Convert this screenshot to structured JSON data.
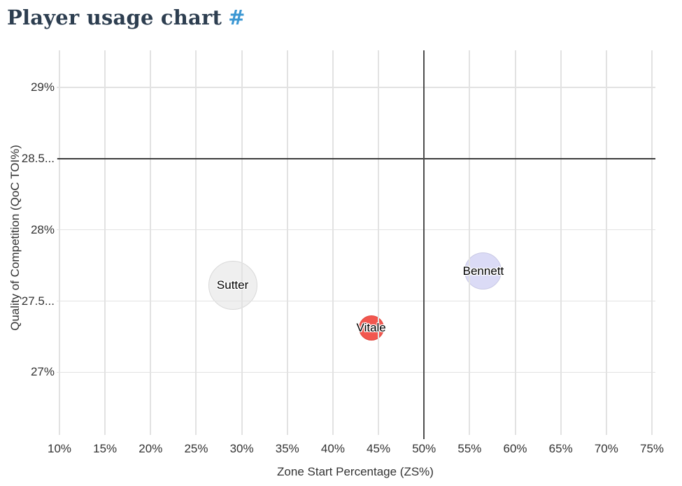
{
  "header": {
    "title": "Player usage chart",
    "anchor": "#",
    "title_color": "#2d3e50",
    "anchor_color": "#3b97d3"
  },
  "chart_data": {
    "type": "scatter",
    "subtype": "bubble",
    "title": "Player usage chart",
    "xlabel": "Zone Start Percentage (ZS%)",
    "ylabel": "Quality of Competition (QoC TOI%)",
    "xlim": [
      10,
      75
    ],
    "ylim": [
      26.56,
      29.26
    ],
    "grid": true,
    "legend": "none",
    "x_ticks": [
      {
        "value": 10,
        "label": "10%"
      },
      {
        "value": 15,
        "label": "15%"
      },
      {
        "value": 20,
        "label": "20%"
      },
      {
        "value": 25,
        "label": "25%"
      },
      {
        "value": 30,
        "label": "30%"
      },
      {
        "value": 35,
        "label": "35%"
      },
      {
        "value": 40,
        "label": "40%"
      },
      {
        "value": 45,
        "label": "45%"
      },
      {
        "value": 50,
        "label": "50%"
      },
      {
        "value": 55,
        "label": "55%"
      },
      {
        "value": 60,
        "label": "60%"
      },
      {
        "value": 65,
        "label": "65%"
      },
      {
        "value": 70,
        "label": "70%"
      },
      {
        "value": 75,
        "label": "75%"
      }
    ],
    "y_ticks": [
      {
        "value": 27,
        "label": "27%"
      },
      {
        "value": 27.5,
        "label": "27.5..."
      },
      {
        "value": 28,
        "label": "28%"
      },
      {
        "value": 28.5,
        "label": "28.5..."
      },
      {
        "value": 29,
        "label": "29%"
      }
    ],
    "reference_lines": {
      "x_value": 50,
      "y_value": 28.5
    },
    "series": [
      {
        "name": "Sutter",
        "x": 29.0,
        "y": 27.61,
        "radius_px": 35,
        "fill": "#efefef",
        "stroke": "#d9d9d9"
      },
      {
        "name": "Vitale",
        "x": 44.2,
        "y": 27.31,
        "radius_px": 18,
        "fill": "#f2564e",
        "stroke": "#e0463e"
      },
      {
        "name": "Bennett",
        "x": 56.5,
        "y": 27.71,
        "radius_px": 26.5,
        "fill": "#dbdbf6",
        "stroke": "#c9c9e5"
      }
    ],
    "colors": {
      "gridline": "#e2e2e2",
      "refline_horizontal": "#3c3c3c",
      "refline_vertical": "#4e4e4e",
      "tick_label": "#333333",
      "axis_title": "#333333",
      "bubble_label": "#000000"
    }
  }
}
